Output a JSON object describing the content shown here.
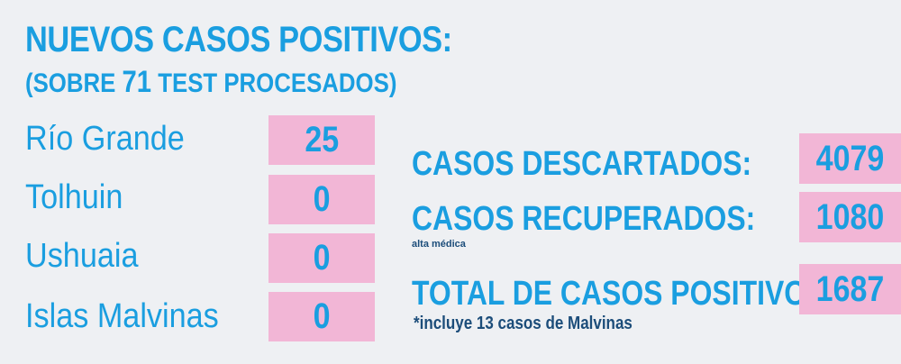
{
  "header": {
    "title": "NUEVOS CASOS POSITIVOS:",
    "subtitle_prefix": "(SOBRE",
    "tests_processed": "71",
    "subtitle_suffix": "TEST PROCESADOS)"
  },
  "cities": [
    {
      "name": "Río Grande",
      "count": "25"
    },
    {
      "name": "Tolhuin",
      "count": "0"
    },
    {
      "name": "Ushuaia",
      "count": "0"
    },
    {
      "name": "Islas Malvinas",
      "count": "0"
    }
  ],
  "summary": {
    "discarded_label": "CASOS DESCARTADOS:",
    "discarded_value": "4079",
    "recovered_label": "CASOS RECUPERADOS:",
    "recovered_value": "1080",
    "recovered_note": "alta médica",
    "total_label": "TOTAL DE CASOS POSITIVOS",
    "total_value": "1687",
    "total_note": "*incluye 13 casos de Malvinas"
  },
  "colors": {
    "accent": "#1a9ee0",
    "box": "#f2b6d6",
    "background": "#eef0f3",
    "note": "#1c4d7a"
  }
}
